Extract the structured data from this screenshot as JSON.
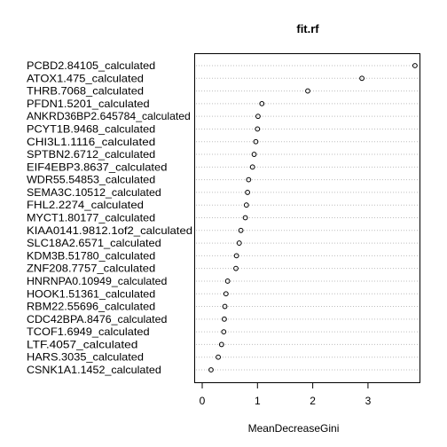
{
  "chart_data": {
    "type": "scatter",
    "title": "fit.rf",
    "xlabel": "MeanDecreaseGini",
    "ylabel": "",
    "xlim": [
      0,
      3.9
    ],
    "xticks": [
      0,
      1,
      2,
      3
    ],
    "grid": "dotted horizontal lines",
    "legend": "none",
    "categories": [
      "PCBD2.84105_calculated",
      "ATOX1.475_calculated",
      "THRB.7068_calculated",
      "PFDN1.5201_calculated",
      "ANKRD36BP2.645784_calculated",
      "PCYT1B.9468_calculated",
      "CHI3L1.1116_calculated",
      "SPTBN2.6712_calculated",
      "EIF4EBP3.8637_calculated",
      "WDR55.54853_calculated",
      "SEMA3C.10512_calculated",
      "FHL2.2274_calculated",
      "MYCT1.80177_calculated",
      "KIAA0141.9812.1of2_calculated",
      "SLC18A2.6571_calculated",
      "KDM3B.51780_calculated",
      "ZNF208.7757_calculated",
      "HNRNPA0.10949_calculated",
      "HOOK1.51361_calculated",
      "RBM22.55696_calculated",
      "CDC42BPA.8476_calculated",
      "TCOF1.6949_calculated",
      "LTF.4057_calculated",
      "HARS.3035_calculated",
      "CSNK1A1.1452_calculated"
    ],
    "values": [
      3.85,
      2.89,
      1.91,
      1.08,
      1.01,
      1.0,
      0.97,
      0.94,
      0.91,
      0.84,
      0.82,
      0.8,
      0.78,
      0.7,
      0.67,
      0.62,
      0.61,
      0.46,
      0.43,
      0.41,
      0.4,
      0.39,
      0.35,
      0.29,
      0.16
    ]
  },
  "colors": {
    "point_stroke": "#000000",
    "grid": "#bdbdbd",
    "frame": "#000000"
  }
}
